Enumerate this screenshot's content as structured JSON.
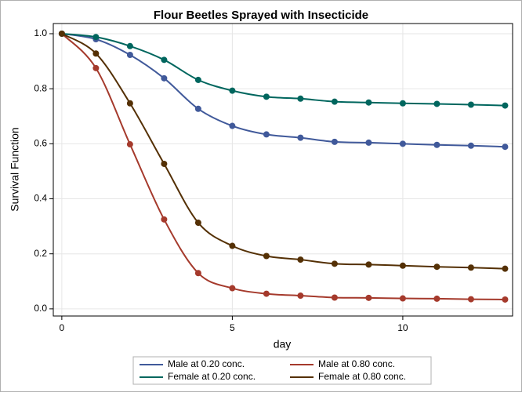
{
  "chart_data": {
    "type": "line",
    "title": "Flour Beetles Sprayed with Insecticide",
    "x_label": "day",
    "y_label": "Survival Function",
    "x": [
      0,
      1,
      2,
      3,
      4,
      5,
      6,
      7,
      8,
      9,
      10,
      11,
      12,
      13
    ],
    "series": [
      {
        "name": "Male at 0.20 conc.",
        "color": "#40599a",
        "values": [
          1.0,
          0.98,
          0.923,
          0.838,
          0.727,
          0.665,
          0.634,
          0.622,
          0.607,
          0.604,
          0.6,
          0.596,
          0.593,
          0.589
        ]
      },
      {
        "name": "Male at 0.80 conc.",
        "color": "#a53a2c",
        "values": [
          1.0,
          0.875,
          0.598,
          0.325,
          0.13,
          0.075,
          0.055,
          0.048,
          0.041,
          0.04,
          0.038,
          0.037,
          0.035,
          0.034
        ]
      },
      {
        "name": "Female at 0.20 conc.",
        "color": "#00665e",
        "values": [
          1.0,
          0.988,
          0.955,
          0.905,
          0.832,
          0.793,
          0.771,
          0.764,
          0.753,
          0.75,
          0.747,
          0.745,
          0.742,
          0.739
        ]
      },
      {
        "name": "Female at 0.80 conc.",
        "color": "#543005",
        "values": [
          1.0,
          0.928,
          0.747,
          0.527,
          0.313,
          0.229,
          0.192,
          0.179,
          0.164,
          0.161,
          0.157,
          0.153,
          0.15,
          0.146
        ]
      }
    ],
    "xlim": [
      -0.25,
      13.22
    ],
    "ylim": [
      -0.026,
      1.037
    ],
    "xticks": [
      0,
      5,
      10
    ],
    "yticks": [
      {
        "value": 0,
        "label": "0.0"
      },
      0.2,
      0.4,
      0.6,
      0.8,
      {
        "value": 1,
        "label": "1.0"
      }
    ],
    "grid": true,
    "legend": "bottom"
  }
}
